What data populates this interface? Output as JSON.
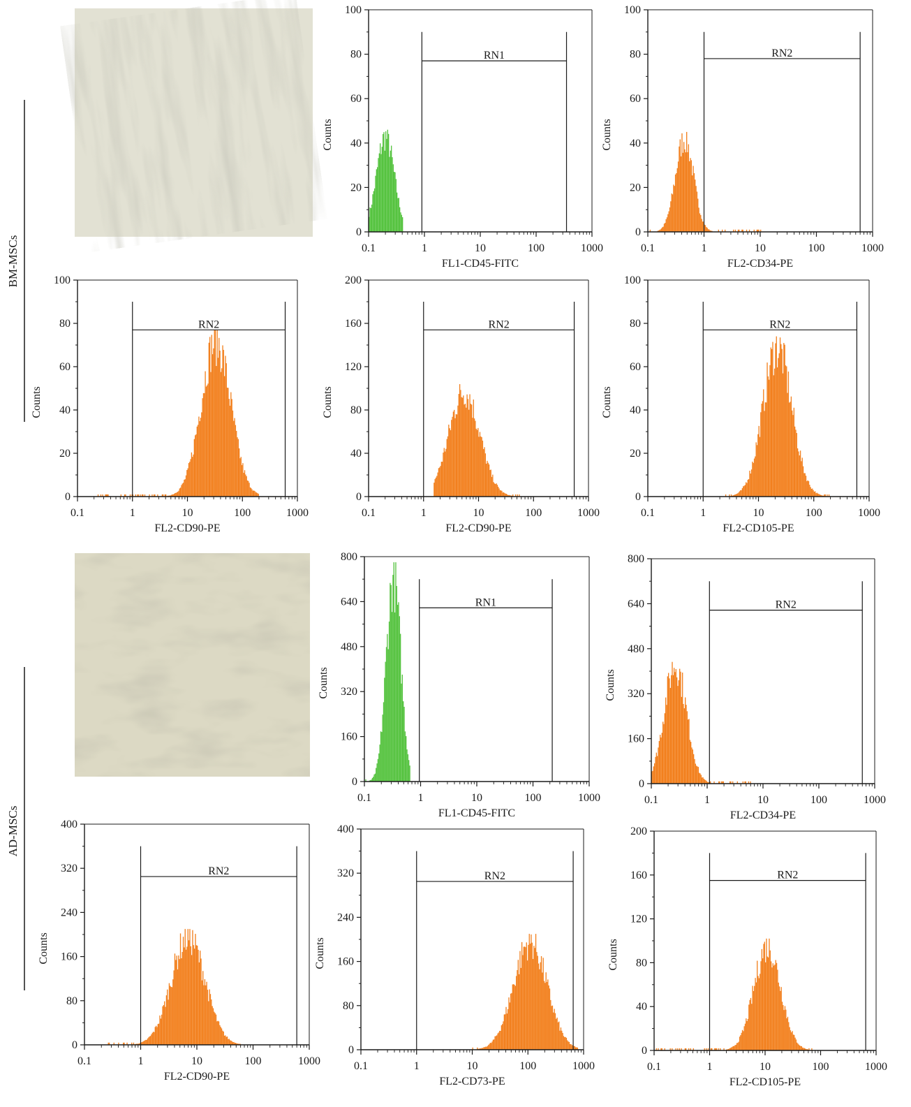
{
  "groups": [
    {
      "label": "BM-MSCs"
    },
    {
      "label": "AD-MSCs"
    }
  ],
  "micrographs": [
    {
      "name": "bm-msc-micrograph",
      "tone_light": "#e2e1d3",
      "tone_dark": "#a9a896"
    },
    {
      "name": "ad-msc-micrograph",
      "tone_light": "#dcd9c4",
      "tone_dark": "#a6a389"
    }
  ],
  "colors": {
    "green": "#56c340",
    "orange": "#f2801e",
    "axis": "#1a1a1a"
  },
  "chart_data": [
    {
      "type": "histogram",
      "group": "BM-MSCs",
      "xlabel": "FL1-CD45-FITC",
      "ylabel": "Counts",
      "xscale": "log",
      "xlim": [
        0.1,
        1000
      ],
      "ylim": [
        0,
        100
      ],
      "yticks": [
        0,
        20,
        40,
        60,
        80,
        100
      ],
      "color": "green",
      "gate": {
        "label": "RN1",
        "x0": 0.9,
        "x1": 350,
        "y": 77
      },
      "peak": {
        "center": 0.2,
        "height": 46,
        "sigma": 0.16,
        "x_min": 0.1,
        "x_max": 0.42
      }
    },
    {
      "type": "histogram",
      "group": "BM-MSCs",
      "xlabel": "FL2-CD34-PE",
      "ylabel": "Counts",
      "xscale": "log",
      "xlim": [
        0.1,
        1000
      ],
      "ylim": [
        0,
        100
      ],
      "yticks": [
        0,
        20,
        40,
        60,
        80,
        100
      ],
      "color": "orange",
      "gate": {
        "label": "RN2",
        "x0": 1.0,
        "x1": 600,
        "y": 78
      },
      "peak": {
        "center": 0.45,
        "height": 45,
        "sigma": 0.16,
        "x_min": 0.1,
        "x_max": 11
      }
    },
    {
      "type": "histogram",
      "group": "BM-MSCs",
      "xlabel": "FL2-CD90-PE",
      "ylabel": "Counts",
      "xscale": "log",
      "xlim": [
        0.1,
        1000
      ],
      "ylim": [
        0,
        100
      ],
      "yticks": [
        0,
        20,
        40,
        60,
        80,
        100
      ],
      "color": "orange",
      "gate": {
        "label": "RN2",
        "x0": 1.0,
        "x1": 600,
        "y": 77
      },
      "peak": {
        "center": 33,
        "height": 77,
        "sigma": 0.27,
        "x_min": 0.2,
        "x_max": 200
      }
    },
    {
      "type": "histogram",
      "group": "BM-MSCs",
      "xlabel": "FL2-CD90-PE",
      "ylabel": "Counts",
      "xscale": "log",
      "xlim": [
        0.1,
        1000
      ],
      "ylim": [
        0,
        200
      ],
      "yticks": [
        0,
        40,
        80,
        120,
        160,
        200
      ],
      "color": "orange",
      "gate": {
        "label": "RN2",
        "x0": 1.0,
        "x1": 550,
        "y": 154
      },
      "peak": {
        "center": 5.5,
        "height": 104,
        "sigma": 0.28,
        "x_min": 1.5,
        "x_max": 60
      }
    },
    {
      "type": "histogram",
      "group": "BM-MSCs",
      "xlabel": "FL2-CD105-PE",
      "ylabel": "Counts",
      "xscale": "log",
      "xlim": [
        0.1,
        1000
      ],
      "ylim": [
        0,
        100
      ],
      "yticks": [
        0,
        20,
        40,
        60,
        80,
        100
      ],
      "color": "orange",
      "gate": {
        "label": "RN2",
        "x0": 1.0,
        "x1": 600,
        "y": 77
      },
      "peak": {
        "center": 22,
        "height": 74,
        "sigma": 0.26,
        "x_min": 2.5,
        "x_max": 200
      }
    },
    {
      "type": "histogram",
      "group": "AD-MSCs",
      "xlabel": "FL1-CD45-FITC",
      "ylabel": "Counts",
      "xscale": "log",
      "xlim": [
        0.1,
        1000
      ],
      "ylim": [
        0,
        800
      ],
      "yticks": [
        0,
        160,
        320,
        480,
        640,
        800
      ],
      "color": "green",
      "gate": {
        "label": "RN1",
        "x0": 0.95,
        "x1": 220,
        "y": 618
      },
      "peak": {
        "center": 0.33,
        "height": 780,
        "sigma": 0.13,
        "x_min": 0.1,
        "x_max": 0.65
      }
    },
    {
      "type": "histogram",
      "group": "AD-MSCs",
      "xlabel": "FL2-CD34-PE",
      "ylabel": "Counts",
      "xscale": "log",
      "xlim": [
        0.1,
        1000
      ],
      "ylim": [
        0,
        800
      ],
      "yticks": [
        0,
        160,
        320,
        480,
        640,
        800
      ],
      "color": "orange",
      "gate": {
        "label": "RN2",
        "x0": 1.1,
        "x1": 600,
        "y": 617
      },
      "peak": {
        "center": 0.27,
        "height": 455,
        "sigma": 0.2,
        "x_min": 0.1,
        "x_max": 6
      }
    },
    {
      "type": "histogram",
      "group": "AD-MSCs",
      "xlabel": "FL2-CD90-PE",
      "ylabel": "Counts",
      "xscale": "log",
      "xlim": [
        0.1,
        1000
      ],
      "ylim": [
        0,
        400
      ],
      "yticks": [
        0,
        80,
        160,
        240,
        320,
        400
      ],
      "color": "orange",
      "gate": {
        "label": "RN2",
        "x0": 1.0,
        "x1": 600,
        "y": 305
      },
      "peak": {
        "center": 7,
        "height": 210,
        "sigma": 0.3,
        "x_min": 0.25,
        "x_max": 60
      }
    },
    {
      "type": "histogram",
      "group": "AD-MSCs",
      "xlabel": "FL2-CD73-PE",
      "ylabel": "Counts",
      "xscale": "log",
      "xlim": [
        0.1,
        1000
      ],
      "ylim": [
        0,
        400
      ],
      "yticks": [
        0,
        80,
        160,
        240,
        320,
        400
      ],
      "color": "orange",
      "gate": {
        "label": "RN2",
        "x0": 1.0,
        "x1": 650,
        "y": 305
      },
      "peak": {
        "center": 110,
        "height": 210,
        "sigma": 0.3,
        "x_min": 10,
        "x_max": 800
      }
    },
    {
      "type": "histogram",
      "group": "AD-MSCs",
      "xlabel": "FL2-CD105-PE",
      "ylabel": "Counts",
      "xscale": "log",
      "xlim": [
        0.1,
        1000
      ],
      "ylim": [
        0,
        200
      ],
      "yticks": [
        0,
        40,
        80,
        120,
        160,
        200
      ],
      "color": "orange",
      "gate": {
        "label": "RN2",
        "x0": 1.0,
        "x1": 650,
        "y": 155
      },
      "peak": {
        "center": 11,
        "height": 102,
        "sigma": 0.24,
        "x_min": 0.1,
        "x_max": 70
      }
    }
  ]
}
